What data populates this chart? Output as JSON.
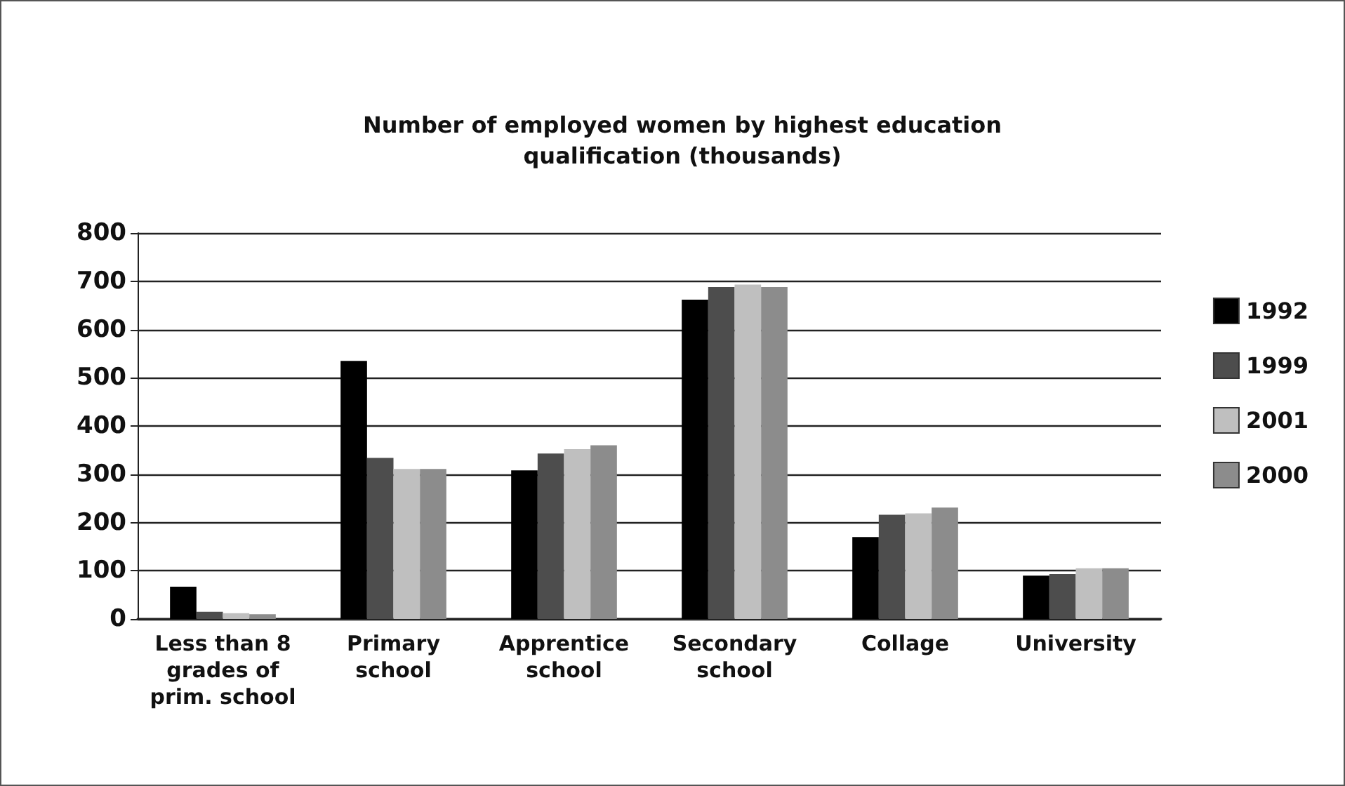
{
  "chart_data": {
    "type": "bar",
    "title": "Number of employed women by highest education\nqualification (thousands)",
    "categories": [
      "Less than 8\ngrades of\nprim. school",
      "Primary\nschool",
      "Apprentice\nschool",
      "Secondary\nschool",
      "Collage",
      "University"
    ],
    "series": [
      {
        "name": "1992",
        "color": "#000000",
        "values": [
          67,
          535,
          308,
          662,
          170,
          90
        ]
      },
      {
        "name": "1999",
        "color": "#4d4d4d",
        "values": [
          15,
          334,
          343,
          688,
          216,
          93
        ]
      },
      {
        "name": "2001",
        "color": "#bfbfbf",
        "values": [
          12,
          311,
          352,
          693,
          219,
          105
        ]
      },
      {
        "name": "2000",
        "color": "#8c8c8c",
        "values": [
          10,
          311,
          360,
          688,
          231,
          105
        ]
      }
    ],
    "ylim": [
      0,
      800
    ],
    "yticks": [
      0,
      100,
      200,
      300,
      400,
      500,
      600,
      700,
      800
    ],
    "grid": "y",
    "legend": "right"
  }
}
